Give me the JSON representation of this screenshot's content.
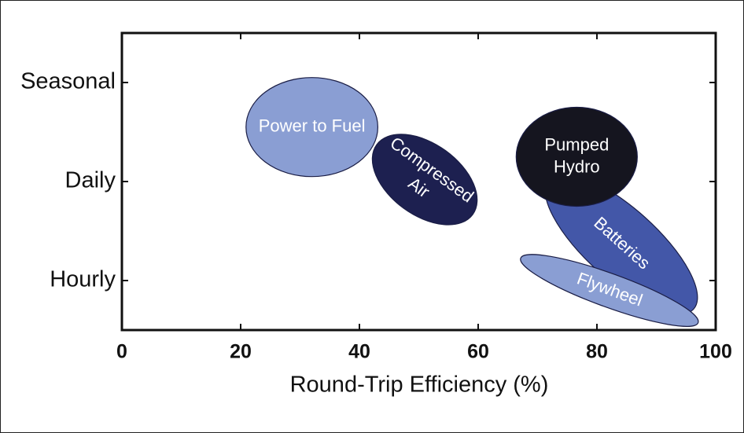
{
  "chart_data": {
    "type": "ellipse",
    "x_label": "Round-Trip Efficiency (%)",
    "xlim": [
      0,
      100
    ],
    "xticks": [
      0,
      20,
      40,
      60,
      80,
      100
    ],
    "ylim": [
      0.5,
      3.5
    ],
    "yticks": [
      {
        "value": 1,
        "label": "Hourly"
      },
      {
        "value": 2,
        "label": "Daily"
      },
      {
        "value": 3,
        "label": "Seasonal"
      }
    ],
    "regions": [
      {
        "label": [
          "Power to Fuel"
        ],
        "x": 32,
        "y": 2.55,
        "rx": 11.1,
        "ry": 0.5,
        "angle": 0,
        "color": "#8a9ed3"
      },
      {
        "label": [
          "Compressed",
          "Air"
        ],
        "x": 51,
        "y": 2.02,
        "rx": 10,
        "ry": 0.36,
        "angle": 36,
        "color": "#1d2050"
      },
      {
        "label": [
          "Batteries"
        ],
        "x": 84.1,
        "y": 1.37,
        "rx": 16.4,
        "ry": 0.36,
        "angle": 42,
        "color": "#4357a8"
      },
      {
        "label": [
          "Pumped",
          "Hydro"
        ],
        "x": 76.6,
        "y": 2.25,
        "rx": 10.2,
        "ry": 0.5,
        "angle": 0,
        "color": "#15151f"
      },
      {
        "label": [
          "Flywheel"
        ],
        "x": 82.1,
        "y": 0.9,
        "rx": 15.9,
        "ry": 0.17,
        "angle": 20,
        "color": "#8a9ed3"
      }
    ]
  }
}
